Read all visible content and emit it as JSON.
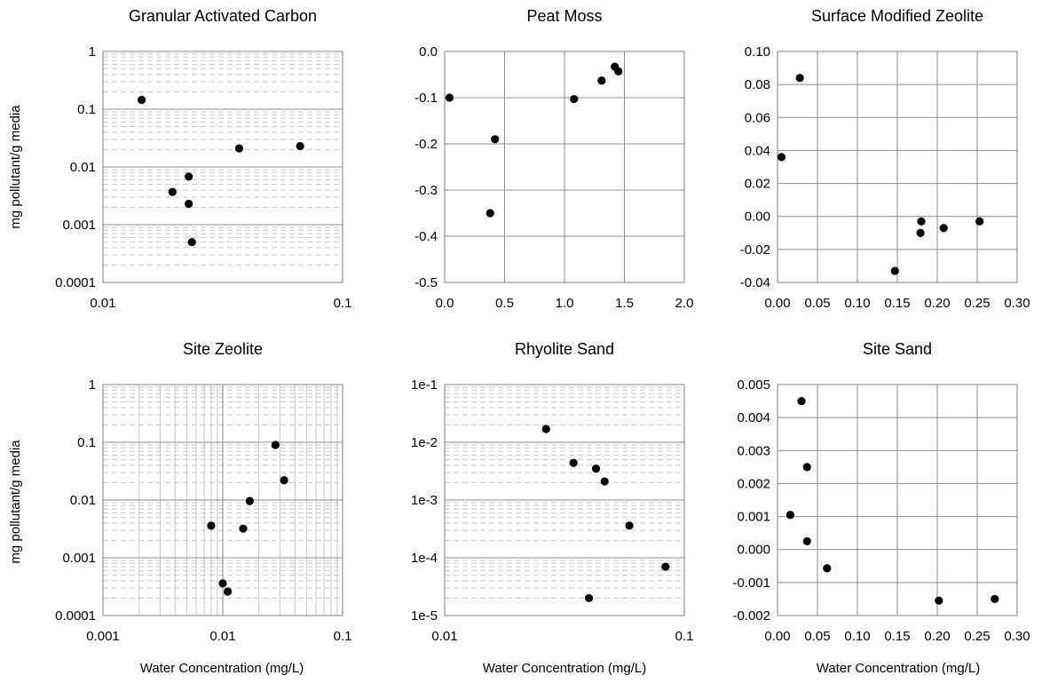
{
  "figure": {
    "ylabel_row1": "mg pollutant/g media",
    "ylabel_row2": "mg pollutant/g media",
    "xlabel_col1": "Water Concentration (mg/L)",
    "xlabel_col2": "Water Concentration (mg/L)",
    "xlabel_col3": "Water Concentration (mg/L)"
  },
  "chart_data": [
    {
      "type": "scatter",
      "title": "Granular Activated Carbon",
      "xscale": "log",
      "yscale": "log",
      "xlim": [
        0.01,
        0.1
      ],
      "ylim": [
        0.0001,
        1
      ],
      "xticks": [
        0.01,
        0.1
      ],
      "xtick_labels": [
        "0.01",
        "0.1"
      ],
      "yticks": [
        0.0001,
        0.001,
        0.01,
        0.1,
        1
      ],
      "ytick_labels": [
        "0.0001",
        "0.001",
        "0.01",
        "0.1",
        "1"
      ],
      "minor_x_grid": false,
      "minor_y_grid": true,
      "points": [
        [
          0.0145,
          0.145
        ],
        [
          0.0195,
          0.0037
        ],
        [
          0.0228,
          0.0068
        ],
        [
          0.0228,
          0.0023
        ],
        [
          0.0235,
          0.0005
        ],
        [
          0.037,
          0.021
        ],
        [
          0.0665,
          0.023
        ]
      ]
    },
    {
      "type": "scatter",
      "title": "Peat Moss",
      "xscale": "linear",
      "yscale": "linear",
      "xlim": [
        0,
        2
      ],
      "ylim": [
        -0.5,
        0
      ],
      "xticks": [
        0,
        0.5,
        1,
        1.5,
        2
      ],
      "xtick_labels": [
        "0.0",
        "0.5",
        "1.0",
        "1.5",
        "2.0"
      ],
      "yticks": [
        -0.5,
        -0.4,
        -0.3,
        -0.2,
        -0.1,
        0
      ],
      "ytick_labels": [
        "-0.5",
        "-0.4",
        "-0.3",
        "-0.2",
        "-0.1",
        "0.0"
      ],
      "points": [
        [
          0.04,
          -0.1
        ],
        [
          0.38,
          -0.35
        ],
        [
          0.42,
          -0.19
        ],
        [
          1.08,
          -0.103
        ],
        [
          1.31,
          -0.063
        ],
        [
          1.42,
          -0.033
        ],
        [
          1.45,
          -0.043
        ]
      ]
    },
    {
      "type": "scatter",
      "title": "Surface Modified Zeolite",
      "xscale": "linear",
      "yscale": "linear",
      "xlim": [
        0,
        0.3
      ],
      "ylim": [
        -0.04,
        0.1
      ],
      "xticks": [
        0,
        0.05,
        0.1,
        0.15,
        0.2,
        0.25,
        0.3
      ],
      "xtick_labels": [
        "0.00",
        "0.05",
        "0.10",
        "0.15",
        "0.20",
        "0.25",
        "0.30"
      ],
      "yticks": [
        -0.04,
        -0.02,
        0,
        0.02,
        0.04,
        0.06,
        0.08,
        0.1
      ],
      "ytick_labels": [
        "-0.04",
        "-0.02",
        "0.00",
        "0.02",
        "0.04",
        "0.06",
        "0.08",
        "0.10"
      ],
      "points": [
        [
          0.005,
          0.036
        ],
        [
          0.028,
          0.084
        ],
        [
          0.147,
          -0.033
        ],
        [
          0.179,
          -0.01
        ],
        [
          0.18,
          -0.003
        ],
        [
          0.208,
          -0.007
        ],
        [
          0.253,
          -0.003
        ]
      ]
    },
    {
      "type": "scatter",
      "title": "Site Zeolite",
      "xscale": "log",
      "yscale": "log",
      "xlim": [
        0.001,
        0.1
      ],
      "ylim": [
        0.0001,
        1
      ],
      "xticks": [
        0.001,
        0.01,
        0.1
      ],
      "xtick_labels": [
        "0.001",
        "0.01",
        "0.1"
      ],
      "yticks": [
        0.0001,
        0.001,
        0.01,
        0.1,
        1
      ],
      "ytick_labels": [
        "0.0001",
        "0.001",
        "0.01",
        "0.1",
        "1"
      ],
      "minor_x_grid": true,
      "minor_y_grid": true,
      "points": [
        [
          0.008,
          0.0036
        ],
        [
          0.01,
          0.00036
        ],
        [
          0.011,
          0.00026
        ],
        [
          0.0148,
          0.0032
        ],
        [
          0.0168,
          0.0096
        ],
        [
          0.0275,
          0.09
        ],
        [
          0.0325,
          0.022
        ]
      ]
    },
    {
      "type": "scatter",
      "title": "Rhyolite Sand",
      "xscale": "log",
      "yscale": "log",
      "xlim": [
        0.01,
        0.1
      ],
      "ylim": [
        1e-05,
        0.1
      ],
      "xticks": [
        0.01,
        0.1
      ],
      "xtick_labels": [
        "0.01",
        "0.1"
      ],
      "yticks": [
        1e-05,
        0.0001,
        0.001,
        0.01,
        0.1
      ],
      "ytick_labels": [
        "1e-5",
        "1e-4",
        "1e-3",
        "1e-2",
        "1e-1"
      ],
      "minor_x_grid": false,
      "minor_y_grid": true,
      "points": [
        [
          0.0265,
          0.017
        ],
        [
          0.0345,
          0.0044
        ],
        [
          0.04,
          2e-05
        ],
        [
          0.0428,
          0.0035
        ],
        [
          0.0465,
          0.0021
        ],
        [
          0.059,
          0.00036
        ],
        [
          0.0835,
          7e-05
        ]
      ]
    },
    {
      "type": "scatter",
      "title": "Site Sand",
      "xscale": "linear",
      "yscale": "linear",
      "xlim": [
        0,
        0.3
      ],
      "ylim": [
        -0.002,
        0.005
      ],
      "xticks": [
        0,
        0.05,
        0.1,
        0.15,
        0.2,
        0.25,
        0.3
      ],
      "xtick_labels": [
        "0.00",
        "0.05",
        "0.10",
        "0.15",
        "0.20",
        "0.25",
        "0.30"
      ],
      "yticks": [
        -0.002,
        -0.001,
        0,
        0.001,
        0.002,
        0.003,
        0.004,
        0.005
      ],
      "ytick_labels": [
        "-0.002",
        "-0.001",
        "0.000",
        "0.001",
        "0.002",
        "0.003",
        "0.004",
        "0.005"
      ],
      "points": [
        [
          0.016,
          0.00105
        ],
        [
          0.03,
          0.0045
        ],
        [
          0.037,
          0.0025
        ],
        [
          0.037,
          0.00025
        ],
        [
          0.062,
          -0.00057
        ],
        [
          0.202,
          -0.00155
        ],
        [
          0.272,
          -0.0015
        ]
      ]
    }
  ]
}
